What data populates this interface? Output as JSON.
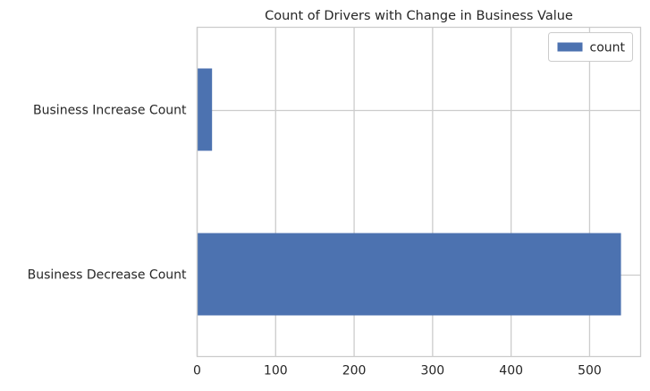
{
  "chart_data": {
    "type": "bar",
    "orientation": "horizontal",
    "title": "Count of Drivers with Change in Business Value",
    "categories": [
      "Business Decrease Count",
      "Business Increase Count"
    ],
    "series": [
      {
        "name": "count",
        "values": [
          540,
          19
        ],
        "color": "#4c72b0"
      }
    ],
    "xlim": [
      0,
      565
    ],
    "xticks": [
      0,
      100,
      200,
      300,
      400,
      500
    ],
    "xlabel": "",
    "ylabel": "",
    "grid": true,
    "legend": {
      "position": "top-right"
    }
  }
}
